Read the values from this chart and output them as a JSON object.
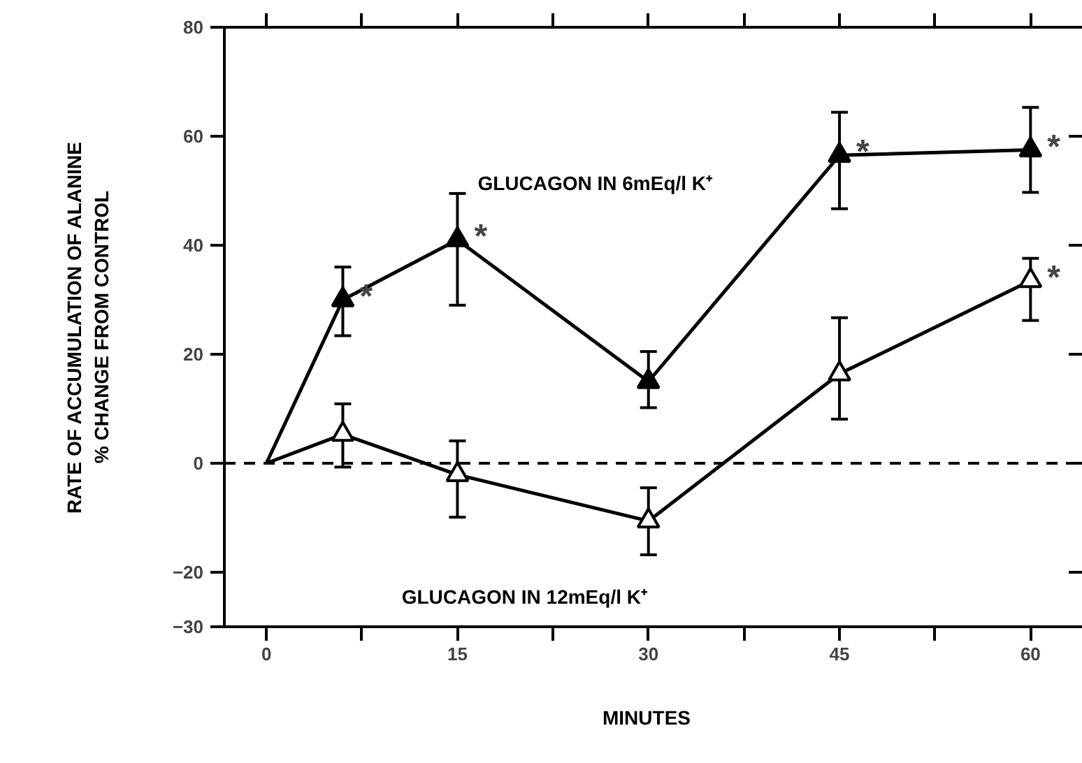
{
  "chart_data": {
    "type": "line",
    "xlabel": "MINUTES",
    "ylabel": "RATE OF ACCUMULATION OF ALANINE\n% CHANGE FROM CONTROL",
    "x": [
      0,
      6,
      15,
      30,
      45,
      60
    ],
    "series": [
      {
        "name": "GLUCAGON IN 6mEq/l K⁺",
        "color": "#000000",
        "marker": "triangle",
        "values": [
          0,
          30,
          41,
          15,
          56.5,
          57.5
        ],
        "errors": [
          null,
          [
            23.4,
            36
          ],
          [
            29,
            49.5
          ],
          [
            10.2,
            20.5
          ],
          [
            46.7,
            64.4
          ],
          [
            49.7,
            65.3
          ]
        ]
      },
      {
        "name": "GLUCAGON IN 12mEq/l K⁺",
        "color": "#000000",
        "marker": "triangle_open",
        "values": [
          0,
          5.3,
          -2.1,
          -10.6,
          16.4,
          33.5
        ],
        "errors": [
          null,
          [
            -0.7,
            10.9
          ],
          [
            -9.9,
            4.1
          ],
          [
            -16.8,
            -4.5
          ],
          [
            8.1,
            26.7
          ],
          [
            26.2,
            37.6
          ]
        ]
      }
    ],
    "xlim": [
      -3.3,
      63
    ],
    "ylim": [
      -30,
      80
    ],
    "xticks": [
      0,
      {
        "value": 7.5,
        "label": null
      },
      15,
      {
        "value": 22.5,
        "label": null
      },
      30,
      {
        "value": 37.5,
        "label": null
      },
      45,
      {
        "value": 52.5,
        "label": null
      },
      60
    ],
    "yticks": [
      -30,
      -20,
      0,
      20,
      40,
      60,
      80
    ],
    "line_style": "solid",
    "grid": false,
    "ref_lines": [
      {
        "axis": "y",
        "value": 0,
        "line_style": "dashed"
      }
    ],
    "annotations": [
      {
        "text": "*",
        "x": 6,
        "y": 30
      },
      {
        "text": "*",
        "x": 15,
        "y": 41
      },
      {
        "text": "*",
        "x": 45,
        "y": 56.5
      },
      {
        "text": "*",
        "x": 60,
        "y": 57.5
      },
      {
        "text": "*",
        "x": 60,
        "y": 33.5
      }
    ]
  }
}
